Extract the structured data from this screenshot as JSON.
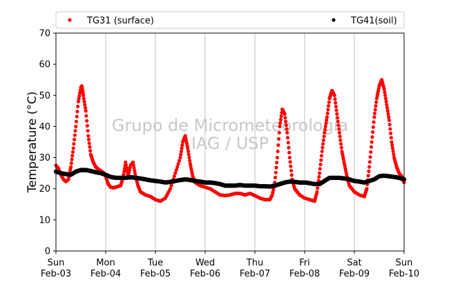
{
  "chart_data": {
    "type": "scatter",
    "xlabel": "",
    "ylabel": "Temperature (°C)",
    "ylim": [
      0,
      70
    ],
    "xlim_days": [
      0,
      7
    ],
    "yticks": [
      0,
      10,
      20,
      30,
      40,
      50,
      60,
      70
    ],
    "xticks": [
      {
        "day": 0,
        "weekday": "Sun",
        "date": "Feb-03"
      },
      {
        "day": 1,
        "weekday": "Mon",
        "date": "Feb-04"
      },
      {
        "day": 2,
        "weekday": "Tue",
        "date": "Feb-05"
      },
      {
        "day": 3,
        "weekday": "Wed",
        "date": "Feb-06"
      },
      {
        "day": 4,
        "weekday": "Thu",
        "date": "Feb-07"
      },
      {
        "day": 5,
        "weekday": "Fri",
        "date": "Feb-08"
      },
      {
        "day": 6,
        "weekday": "Sat",
        "date": "Feb-09"
      },
      {
        "day": 7,
        "weekday": "Sun",
        "date": "Feb-10"
      }
    ],
    "grid": "vertical",
    "legend_position": "top",
    "watermark": [
      "Grupo de Micrometeorologia",
      "IAG / USP"
    ],
    "series": [
      {
        "name": "TG31 (surface)",
        "color": "#ff0000",
        "points": [
          [
            0.0,
            27.5
          ],
          [
            0.05,
            26.5
          ],
          [
            0.1,
            24.5
          ],
          [
            0.15,
            23.0
          ],
          [
            0.2,
            22.3
          ],
          [
            0.25,
            23.0
          ],
          [
            0.3,
            27.0
          ],
          [
            0.35,
            33.0
          ],
          [
            0.4,
            40.0
          ],
          [
            0.45,
            48.0
          ],
          [
            0.5,
            52.5
          ],
          [
            0.52,
            53.0
          ],
          [
            0.55,
            50.0
          ],
          [
            0.6,
            45.0
          ],
          [
            0.65,
            37.0
          ],
          [
            0.7,
            31.0
          ],
          [
            0.75,
            28.5
          ],
          [
            0.8,
            27.0
          ],
          [
            0.85,
            26.3
          ],
          [
            0.9,
            25.8
          ],
          [
            0.95,
            25.2
          ],
          [
            1.0,
            24.0
          ],
          [
            1.05,
            21.5
          ],
          [
            1.1,
            20.5
          ],
          [
            1.15,
            20.3
          ],
          [
            1.2,
            20.5
          ],
          [
            1.3,
            21.0
          ],
          [
            1.35,
            23.5
          ],
          [
            1.4,
            28.5
          ],
          [
            1.45,
            24.0
          ],
          [
            1.5,
            27.5
          ],
          [
            1.55,
            28.5
          ],
          [
            1.6,
            24.0
          ],
          [
            1.65,
            21.0
          ],
          [
            1.7,
            19.0
          ],
          [
            1.75,
            18.5
          ],
          [
            1.8,
            18.0
          ],
          [
            1.9,
            17.5
          ],
          [
            2.0,
            16.5
          ],
          [
            2.1,
            16.0
          ],
          [
            2.2,
            17.0
          ],
          [
            2.3,
            20.0
          ],
          [
            2.4,
            25.0
          ],
          [
            2.5,
            30.0
          ],
          [
            2.55,
            35.0
          ],
          [
            2.6,
            37.0
          ],
          [
            2.65,
            33.0
          ],
          [
            2.7,
            28.0
          ],
          [
            2.75,
            24.0
          ],
          [
            2.8,
            22.0
          ],
          [
            2.9,
            21.0
          ],
          [
            3.0,
            20.5
          ],
          [
            3.1,
            20.0
          ],
          [
            3.2,
            19.0
          ],
          [
            3.3,
            18.0
          ],
          [
            3.4,
            17.8
          ],
          [
            3.5,
            18.0
          ],
          [
            3.6,
            18.5
          ],
          [
            3.7,
            18.5
          ],
          [
            3.8,
            18.0
          ],
          [
            3.9,
            18.5
          ],
          [
            4.0,
            17.8
          ],
          [
            4.1,
            17.0
          ],
          [
            4.2,
            16.5
          ],
          [
            4.3,
            16.5
          ],
          [
            4.35,
            18.0
          ],
          [
            4.4,
            22.0
          ],
          [
            4.45,
            30.0
          ],
          [
            4.5,
            40.0
          ],
          [
            4.55,
            45.5
          ],
          [
            4.6,
            44.0
          ],
          [
            4.65,
            38.0
          ],
          [
            4.7,
            30.0
          ],
          [
            4.75,
            23.0
          ],
          [
            4.8,
            20.0
          ],
          [
            4.85,
            19.0
          ],
          [
            4.9,
            18.0
          ],
          [
            5.0,
            17.0
          ],
          [
            5.1,
            16.5
          ],
          [
            5.2,
            16.0
          ],
          [
            5.25,
            19.0
          ],
          [
            5.3,
            25.0
          ],
          [
            5.35,
            32.0
          ],
          [
            5.4,
            38.0
          ],
          [
            5.45,
            43.0
          ],
          [
            5.5,
            49.0
          ],
          [
            5.55,
            51.5
          ],
          [
            5.6,
            50.0
          ],
          [
            5.65,
            44.0
          ],
          [
            5.7,
            38.0
          ],
          [
            5.75,
            32.0
          ],
          [
            5.8,
            28.0
          ],
          [
            5.85,
            24.0
          ],
          [
            5.9,
            21.0
          ],
          [
            6.0,
            19.0
          ],
          [
            6.1,
            18.0
          ],
          [
            6.2,
            17.5
          ],
          [
            6.25,
            20.0
          ],
          [
            6.3,
            27.0
          ],
          [
            6.35,
            35.0
          ],
          [
            6.4,
            43.0
          ],
          [
            6.45,
            49.0
          ],
          [
            6.5,
            53.0
          ],
          [
            6.55,
            55.0
          ],
          [
            6.6,
            52.0
          ],
          [
            6.65,
            47.0
          ],
          [
            6.7,
            42.0
          ],
          [
            6.75,
            35.0
          ],
          [
            6.8,
            30.0
          ],
          [
            6.85,
            27.0
          ],
          [
            6.9,
            25.0
          ],
          [
            6.95,
            24.0
          ],
          [
            7.0,
            22.0
          ]
        ]
      },
      {
        "name": "TG41(soil)",
        "color": "#000000",
        "points": [
          [
            0.0,
            25.5
          ],
          [
            0.1,
            25.0
          ],
          [
            0.2,
            24.7
          ],
          [
            0.3,
            24.5
          ],
          [
            0.4,
            25.5
          ],
          [
            0.5,
            26.0
          ],
          [
            0.6,
            26.0
          ],
          [
            0.7,
            25.7
          ],
          [
            0.8,
            25.3
          ],
          [
            0.9,
            25.0
          ],
          [
            1.0,
            24.5
          ],
          [
            1.1,
            23.8
          ],
          [
            1.2,
            23.5
          ],
          [
            1.3,
            23.5
          ],
          [
            1.4,
            23.5
          ],
          [
            1.5,
            23.7
          ],
          [
            1.6,
            23.5
          ],
          [
            1.7,
            23.3
          ],
          [
            1.8,
            23.0
          ],
          [
            1.9,
            22.7
          ],
          [
            2.0,
            22.5
          ],
          [
            2.1,
            22.3
          ],
          [
            2.2,
            22.0
          ],
          [
            2.3,
            22.2
          ],
          [
            2.4,
            22.5
          ],
          [
            2.5,
            22.8
          ],
          [
            2.6,
            23.0
          ],
          [
            2.7,
            22.8
          ],
          [
            2.8,
            22.5
          ],
          [
            2.9,
            22.3
          ],
          [
            3.0,
            22.0
          ],
          [
            3.1,
            22.0
          ],
          [
            3.2,
            21.8
          ],
          [
            3.3,
            21.5
          ],
          [
            3.4,
            21.0
          ],
          [
            3.5,
            21.0
          ],
          [
            3.6,
            21.0
          ],
          [
            3.7,
            21.2
          ],
          [
            3.8,
            21.0
          ],
          [
            3.9,
            21.0
          ],
          [
            4.0,
            21.0
          ],
          [
            4.1,
            20.8
          ],
          [
            4.2,
            20.8
          ],
          [
            4.3,
            20.7
          ],
          [
            4.4,
            21.0
          ],
          [
            4.5,
            21.5
          ],
          [
            4.6,
            22.0
          ],
          [
            4.7,
            22.3
          ],
          [
            4.8,
            22.2
          ],
          [
            4.9,
            22.0
          ],
          [
            5.0,
            22.0
          ],
          [
            5.1,
            21.8
          ],
          [
            5.2,
            21.5
          ],
          [
            5.3,
            21.5
          ],
          [
            5.4,
            22.5
          ],
          [
            5.5,
            23.5
          ],
          [
            5.6,
            23.5
          ],
          [
            5.7,
            23.5
          ],
          [
            5.8,
            23.3
          ],
          [
            5.9,
            23.0
          ],
          [
            6.0,
            22.5
          ],
          [
            6.1,
            22.3
          ],
          [
            6.2,
            22.0
          ],
          [
            6.3,
            22.5
          ],
          [
            6.4,
            23.0
          ],
          [
            6.5,
            24.0
          ],
          [
            6.6,
            24.2
          ],
          [
            6.7,
            24.0
          ],
          [
            6.8,
            23.8
          ],
          [
            6.9,
            23.5
          ],
          [
            7.0,
            23.0
          ]
        ]
      }
    ]
  }
}
